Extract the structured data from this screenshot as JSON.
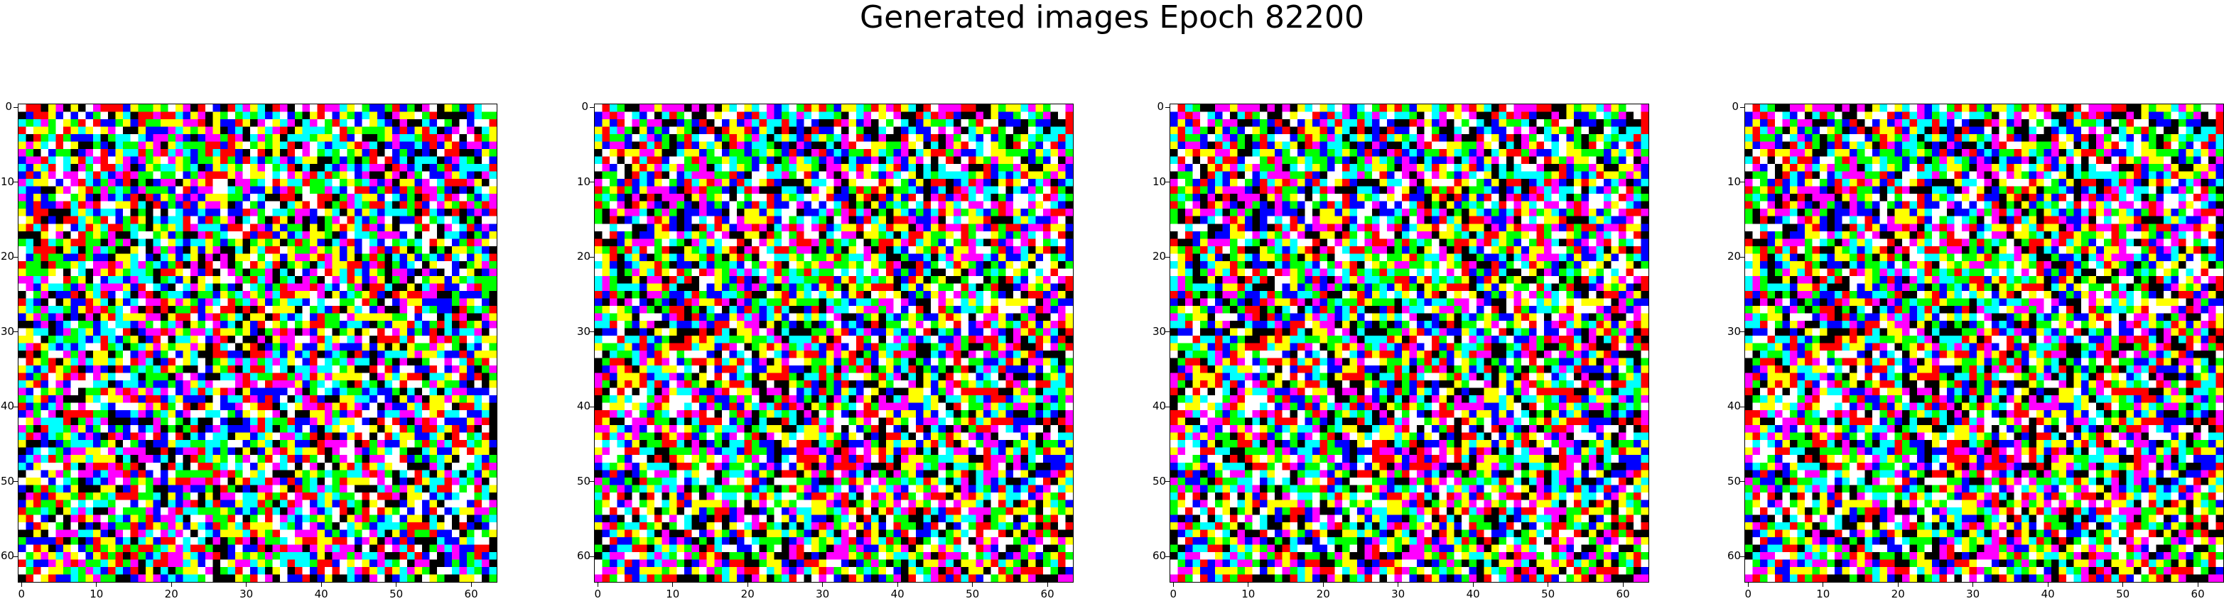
{
  "figure": {
    "title": "Generated images Epoch 82200"
  },
  "chart_data": [
    {
      "type": "heatmap",
      "title": "",
      "grid_size": 64,
      "x_ticks": [
        0,
        10,
        20,
        30,
        40,
        50,
        60
      ],
      "y_ticks": [
        0,
        10,
        20,
        30,
        40,
        50,
        60
      ],
      "xlim": [
        -0.5,
        63.5
      ],
      "ylim": [
        63.5,
        -0.5
      ],
      "grid": false,
      "palette": [
        "#000000",
        "#ffffff",
        "#ff0000",
        "#00ff00",
        "#0000ff",
        "#ffff00",
        "#ff00ff",
        "#00ffff"
      ],
      "seed": 11
    },
    {
      "type": "heatmap",
      "title": "",
      "grid_size": 64,
      "x_ticks": [
        0,
        10,
        20,
        30,
        40,
        50,
        60
      ],
      "y_ticks": [
        0,
        10,
        20,
        30,
        40,
        50,
        60
      ],
      "xlim": [
        -0.5,
        63.5
      ],
      "ylim": [
        63.5,
        -0.5
      ],
      "grid": false,
      "palette": [
        "#000000",
        "#ffffff",
        "#ff0000",
        "#00ff00",
        "#0000ff",
        "#ffff00",
        "#ff00ff",
        "#00ffff"
      ],
      "seed": 22
    },
    {
      "type": "heatmap",
      "title": "",
      "grid_size": 64,
      "x_ticks": [
        0,
        10,
        20,
        30,
        40,
        50,
        60
      ],
      "y_ticks": [
        0,
        10,
        20,
        30,
        40,
        50,
        60
      ],
      "xlim": [
        -0.5,
        63.5
      ],
      "ylim": [
        63.5,
        -0.5
      ],
      "grid": false,
      "palette": [
        "#000000",
        "#ffffff",
        "#ff0000",
        "#00ff00",
        "#0000ff",
        "#ffff00",
        "#ff00ff",
        "#00ffff"
      ],
      "seed": 22
    },
    {
      "type": "heatmap",
      "title": "",
      "grid_size": 64,
      "x_ticks": [
        0,
        10,
        20,
        30,
        40,
        50,
        60
      ],
      "y_ticks": [
        0,
        10,
        20,
        30,
        40,
        50,
        60
      ],
      "xlim": [
        -0.5,
        63.5
      ],
      "ylim": [
        63.5,
        -0.5
      ],
      "grid": false,
      "palette": [
        "#000000",
        "#ffffff",
        "#ff0000",
        "#00ff00",
        "#0000ff",
        "#ffff00",
        "#ff00ff",
        "#00ffff"
      ],
      "seed": 22
    }
  ]
}
